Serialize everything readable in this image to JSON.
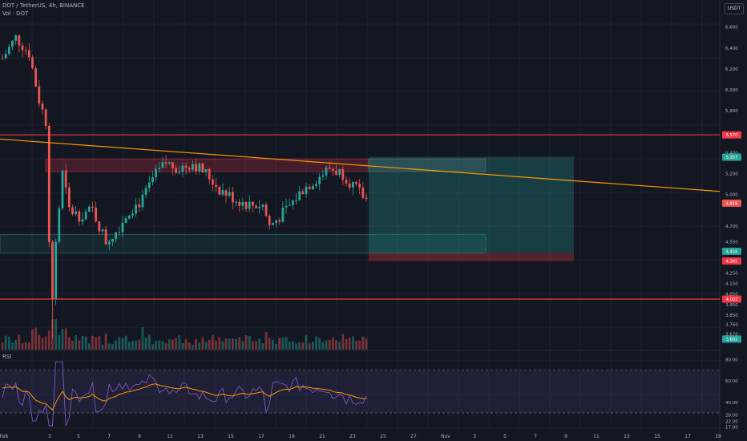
{
  "header": {
    "symbol_line": "DOT / TetherUS, 4h, BINANCE",
    "volume_line": "Vol · DOT",
    "currency_button": "USDT",
    "rsi_label": "RSI"
  },
  "colors": {
    "background": "#131722",
    "up": "#26a69a",
    "down": "#ef5350",
    "resistance": "#f23645",
    "trendline": "#ff9800",
    "rsi_line": "#7e57c2",
    "rsi_ma": "#ff9800"
  },
  "price_axis": {
    "labels": [
      "6,600",
      "6,400",
      "6,200",
      "6,000",
      "5,800",
      "5,400",
      "5,200",
      "5,000",
      "4,700",
      "4,550",
      "4,250",
      "4,150",
      "4,050",
      "3,950",
      "3,850",
      "3,760",
      "3,670"
    ],
    "badges": [
      {
        "text": "5,570",
        "color": "#f23645"
      },
      {
        "text": "5,357",
        "color": "#26a69a"
      },
      {
        "text": "4,918",
        "color": "#ef5350"
      },
      {
        "text": "4,458",
        "color": "#26a69a"
      },
      {
        "text": "4,365",
        "color": "#f23645"
      },
      {
        "text": "4,002",
        "color": "#f23645"
      },
      {
        "text": "3,602",
        "color": "#26a69a"
      }
    ]
  },
  "rsi_axis": {
    "labels": [
      "80.00",
      "60.00",
      "40.00",
      "28.00",
      "22.00",
      "17.00"
    ]
  },
  "time_axis": {
    "labels": [
      "Feb",
      "3",
      "5",
      "7",
      "9",
      "11",
      "13",
      "15",
      "17",
      "19",
      "21",
      "23",
      "25",
      "27",
      "Nov",
      "3",
      "5",
      "7",
      "9",
      "11",
      "13",
      "15",
      "17",
      "19"
    ]
  },
  "chart_data": {
    "type": "candlestick",
    "candle_count": 110,
    "price_ylim": [
      3.55,
      6.72
    ],
    "horizontal_lines": [
      5.57,
      4.002
    ],
    "trendline": {
      "from_price": 5.53,
      "to_price": 5.03
    },
    "resistance_zone": [
      5.22,
      5.34
    ],
    "support_zone": [
      4.44,
      4.62
    ],
    "position_box": {
      "entry": 4.44,
      "target": 5.36,
      "stop": 4.365
    },
    "rsi_levels": [
      70,
      30
    ]
  }
}
